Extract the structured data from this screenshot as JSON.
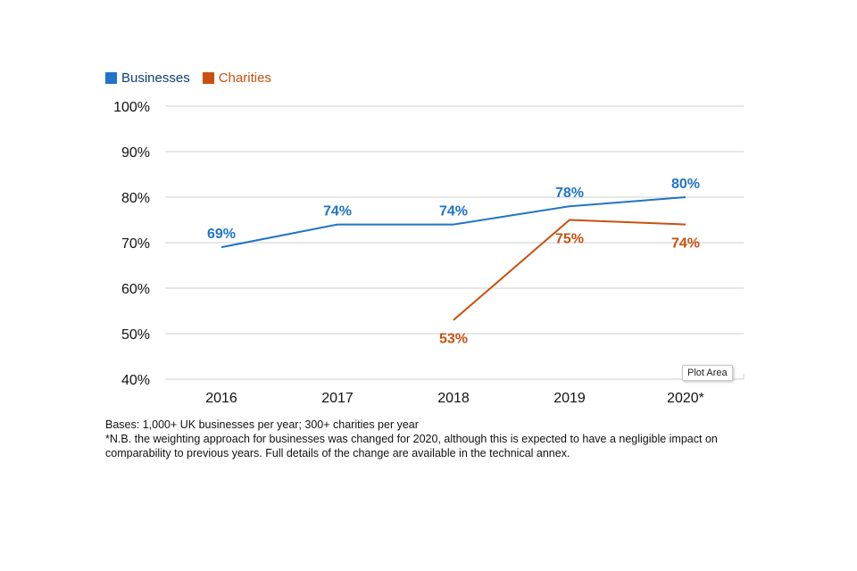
{
  "colors": {
    "businesses": "#1f73c9",
    "charities": "#c9500f",
    "grid": "#cfcfcf",
    "axis_text": "#111111"
  },
  "chart_data": {
    "type": "line",
    "categories": [
      "2016",
      "2017",
      "2018",
      "2019",
      "2020*"
    ],
    "series": [
      {
        "name": "Businesses",
        "values": [
          69,
          74,
          74,
          78,
          80
        ],
        "labels": [
          "69%",
          "74%",
          "74%",
          "78%",
          "80%"
        ],
        "label_position": "above"
      },
      {
        "name": "Charities",
        "values": [
          null,
          null,
          53,
          75,
          74
        ],
        "labels": [
          null,
          null,
          "53%",
          "75%",
          "74%"
        ],
        "label_position": "below"
      }
    ],
    "ylim": [
      40,
      100
    ],
    "yticks": [
      40,
      50,
      60,
      70,
      80,
      90,
      100
    ],
    "ytick_labels": [
      "40%",
      "50%",
      "60%",
      "70%",
      "80%",
      "90%",
      "100%"
    ],
    "grid": true,
    "legend": "top-left"
  },
  "legend": {
    "businesses": "Businesses",
    "charities": "Charities"
  },
  "notes": {
    "bases": "Bases: 1,000+ UK businesses per year; 300+ charities per year",
    "nb": "*N.B. the weighting approach for businesses was changed for 2020, although this is expected to have a negligible impact on comparability to previous years. Full details of the change are available in the technical annex."
  },
  "tooltip": "Plot Area"
}
